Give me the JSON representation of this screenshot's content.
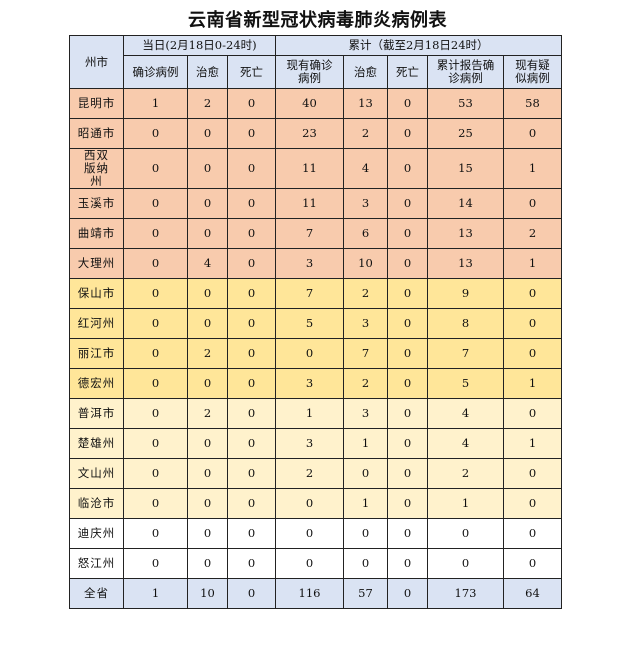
{
  "title": "云南省新型冠状病毒肺炎病例表",
  "header": {
    "region": "州市",
    "daily_group": "当日(2月18日0-24时)",
    "cumulative_group": "累计（截至2月18日24时）",
    "columns": [
      "确诊病例",
      "治愈",
      "死亡",
      "现有确诊病例",
      "治愈",
      "死亡",
      "累计报告确诊病例",
      "现有疑似病例"
    ]
  },
  "colors": {
    "header": "#dae3f3",
    "red": "#f8cbad",
    "orange": "#ffe699",
    "yellow": "#fff2cc",
    "white": "#ffffff",
    "total": "#dae3f3"
  },
  "rows": [
    {
      "name": "昆明市",
      "band": "red",
      "values": [
        "1",
        "2",
        "0",
        "40",
        "13",
        "0",
        "53",
        "58"
      ]
    },
    {
      "name": "昭通市",
      "band": "red",
      "values": [
        "0",
        "0",
        "0",
        "23",
        "2",
        "0",
        "25",
        "0"
      ]
    },
    {
      "name": "西双版纳州",
      "band": "red",
      "values": [
        "0",
        "0",
        "0",
        "11",
        "4",
        "0",
        "15",
        "1"
      ]
    },
    {
      "name": "玉溪市",
      "band": "red",
      "values": [
        "0",
        "0",
        "0",
        "11",
        "3",
        "0",
        "14",
        "0"
      ]
    },
    {
      "name": "曲靖市",
      "band": "red",
      "values": [
        "0",
        "0",
        "0",
        "7",
        "6",
        "0",
        "13",
        "2"
      ]
    },
    {
      "name": "大理州",
      "band": "red",
      "values": [
        "0",
        "4",
        "0",
        "3",
        "10",
        "0",
        "13",
        "1"
      ]
    },
    {
      "name": "保山市",
      "band": "orange",
      "values": [
        "0",
        "0",
        "0",
        "7",
        "2",
        "0",
        "9",
        "0"
      ]
    },
    {
      "name": "红河州",
      "band": "orange",
      "values": [
        "0",
        "0",
        "0",
        "5",
        "3",
        "0",
        "8",
        "0"
      ]
    },
    {
      "name": "丽江市",
      "band": "orange",
      "values": [
        "0",
        "2",
        "0",
        "0",
        "7",
        "0",
        "7",
        "0"
      ]
    },
    {
      "name": "德宏州",
      "band": "orange",
      "values": [
        "0",
        "0",
        "0",
        "3",
        "2",
        "0",
        "5",
        "1"
      ]
    },
    {
      "name": "普洱市",
      "band": "yellow",
      "values": [
        "0",
        "2",
        "0",
        "1",
        "3",
        "0",
        "4",
        "0"
      ]
    },
    {
      "name": "楚雄州",
      "band": "yellow",
      "values": [
        "0",
        "0",
        "0",
        "3",
        "1",
        "0",
        "4",
        "1"
      ]
    },
    {
      "name": "文山州",
      "band": "yellow",
      "values": [
        "0",
        "0",
        "0",
        "2",
        "0",
        "0",
        "2",
        "0"
      ]
    },
    {
      "name": "临沧市",
      "band": "yellow",
      "values": [
        "0",
        "0",
        "0",
        "0",
        "1",
        "0",
        "1",
        "0"
      ]
    },
    {
      "name": "迪庆州",
      "band": "white",
      "values": [
        "0",
        "0",
        "0",
        "0",
        "0",
        "0",
        "0",
        "0"
      ]
    },
    {
      "name": "怒江州",
      "band": "white",
      "values": [
        "0",
        "0",
        "0",
        "0",
        "0",
        "0",
        "0",
        "0"
      ]
    }
  ],
  "total": {
    "name": "全省",
    "values": [
      "1",
      "10",
      "0",
      "116",
      "57",
      "0",
      "173",
      "64"
    ]
  }
}
